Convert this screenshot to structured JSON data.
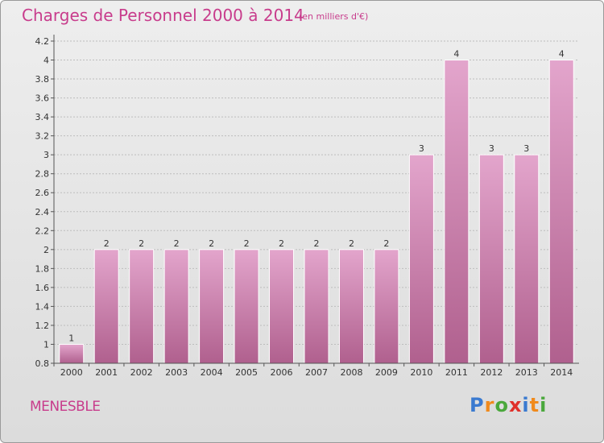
{
  "title": "Charges de Personnel 2000 à 2014",
  "subtitle": "(en milliers d'€)",
  "town": "MENESBLE",
  "brand": {
    "letters": [
      "P",
      "r",
      "o",
      "x",
      "i",
      "t",
      "i"
    ],
    "colors": [
      "#3a7ad0",
      "#f08a1c",
      "#4aa83c",
      "#e0302a",
      "#3a7ad0",
      "#f08a1c",
      "#4aa83c"
    ]
  },
  "colors": {
    "accent": "#c83c8c",
    "bar": "#d98cbc",
    "bar_dark": "#b0608e"
  },
  "chart_data": {
    "type": "bar",
    "title": "Charges de Personnel 2000 à 2014",
    "subtitle": "(en milliers d'€)",
    "categories": [
      "2000",
      "2001",
      "2002",
      "2003",
      "2004",
      "2005",
      "2006",
      "2007",
      "2008",
      "2009",
      "2010",
      "2011",
      "2012",
      "2013",
      "2014"
    ],
    "values": [
      1,
      2,
      2,
      2,
      2,
      2,
      2,
      2,
      2,
      2,
      3,
      4,
      3,
      3,
      4
    ],
    "data_labels": [
      "1",
      "2",
      "2",
      "2",
      "2",
      "2",
      "2",
      "2",
      "2",
      "2",
      "3",
      "4",
      "3",
      "3",
      "4"
    ],
    "ylim": [
      0.8,
      4.2
    ],
    "yticks": [
      "0.8",
      "1",
      "1.2",
      "1.4",
      "1.6",
      "1.8",
      "2",
      "2.2",
      "2.4",
      "2.6",
      "2.8",
      "3",
      "3.2",
      "3.4",
      "3.6",
      "3.8",
      "4",
      "4.2"
    ],
    "grid": true,
    "xlabel": "",
    "ylabel": ""
  }
}
